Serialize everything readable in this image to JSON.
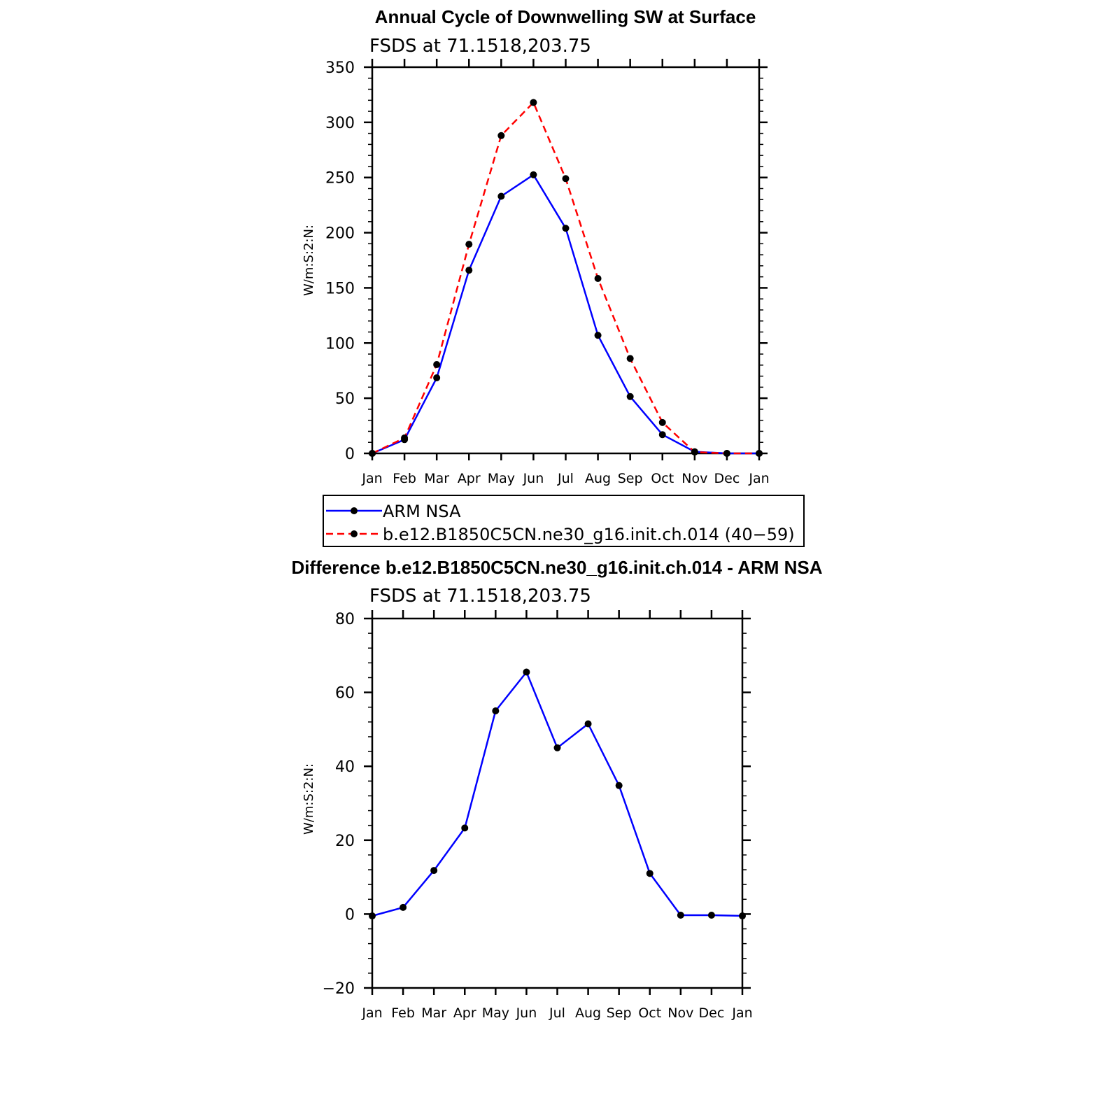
{
  "chart_data": [
    {
      "type": "line",
      "title": "Annual Cycle of Downwelling SW at Surface",
      "subtitle": "FSDS at 71.1518,203.75",
      "ylabel": "W/m:S:2:N:",
      "ylim": [
        0,
        350
      ],
      "yticks": [
        "0",
        "50",
        "100",
        "150",
        "200",
        "250",
        "300",
        "350"
      ],
      "categories": [
        "Jan",
        "Feb",
        "Mar",
        "Apr",
        "May",
        "Jun",
        "Jul",
        "Aug",
        "Sep",
        "Oct",
        "Nov",
        "Dec",
        "Jan"
      ],
      "legend_position": "below",
      "series": [
        {
          "name": "ARM NSA",
          "color": "#0000ff",
          "dash": "solid",
          "values": [
            0,
            12.5,
            68.5,
            166,
            233,
            252.5,
            204,
            107,
            51.5,
            17,
            1.5,
            0,
            0
          ]
        },
        {
          "name": "b.e12.B1850C5CN.ne30_g16.init.ch.014 (40−59)",
          "color": "#ff0000",
          "dash": "dashed",
          "values": [
            0,
            14,
            80.5,
            189.5,
            288,
            318,
            249,
            158.5,
            86,
            28,
            1.2,
            0,
            0
          ]
        }
      ]
    },
    {
      "type": "line",
      "title": "Difference b.e12.B1850C5CN.ne30_g16.init.ch.014 - ARM NSA",
      "subtitle": "FSDS at 71.1518,203.75",
      "ylabel": "W/m:S:2:N:",
      "ylim": [
        -20,
        80
      ],
      "yticks": [
        "−20",
        "0",
        "20",
        "40",
        "60",
        "80"
      ],
      "categories": [
        "Jan",
        "Feb",
        "Mar",
        "Apr",
        "May",
        "Jun",
        "Jul",
        "Aug",
        "Sep",
        "Oct",
        "Nov",
        "Dec",
        "Jan"
      ],
      "series": [
        {
          "color": "#0000ff",
          "dash": "solid",
          "values": [
            -0.5,
            1.8,
            11.8,
            23.3,
            55,
            65.5,
            45,
            51.5,
            34.8,
            11,
            -0.3,
            -0.3,
            -0.5
          ]
        }
      ]
    }
  ]
}
